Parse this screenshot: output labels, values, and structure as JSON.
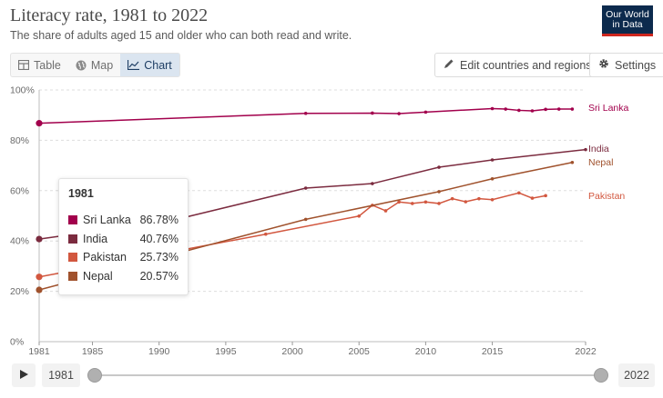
{
  "header": {
    "title": "Literacy rate, 1981 to 2022",
    "subtitle": "The share of adults aged 15 and older who can both read and write.",
    "logo_line1": "Our World",
    "logo_line2": "in Data"
  },
  "toolbar": {
    "tabs": [
      {
        "label": "Table",
        "icon": "table-icon",
        "active": false
      },
      {
        "label": "Map",
        "icon": "globe-icon",
        "active": false
      },
      {
        "label": "Chart",
        "icon": "line-chart-icon",
        "active": true
      }
    ],
    "edit_label": "Edit countries and regions",
    "settings_label": "Settings"
  },
  "tooltip": {
    "year": "1981",
    "rows": [
      {
        "name": "Sri Lanka",
        "value": "86.78%",
        "color": "#a2004c"
      },
      {
        "name": "India",
        "value": "40.76%",
        "color": "#7b2b3f"
      },
      {
        "name": "Pakistan",
        "value": "25.73%",
        "color": "#d2573f"
      },
      {
        "name": "Nepal",
        "value": "20.57%",
        "color": "#a0522d"
      }
    ]
  },
  "timeline": {
    "start_label": "1981",
    "end_label": "2022",
    "start_year": 1981,
    "end_year": 2022
  },
  "chart_data": {
    "type": "line",
    "title": "Literacy rate, 1981 to 2022",
    "subtitle": "The share of adults aged 15 and older who can both read and write.",
    "xlim": [
      1981,
      2022
    ],
    "ylim": [
      0,
      100
    ],
    "x_ticks": [
      1981,
      1985,
      1990,
      1995,
      2000,
      2005,
      2010,
      2015,
      2022
    ],
    "y_ticks": [
      0,
      20,
      40,
      60,
      80,
      100
    ],
    "y_tick_labels": [
      "0%",
      "20%",
      "40%",
      "60%",
      "80%",
      "100%"
    ],
    "grid": "horizontal",
    "series": [
      {
        "name": "Sri Lanka",
        "color": "#a2004c",
        "points": [
          [
            1981,
            86.78
          ],
          [
            2001,
            90.7
          ],
          [
            2006,
            90.8
          ],
          [
            2008,
            90.6
          ],
          [
            2010,
            91.2
          ],
          [
            2015,
            92.6
          ],
          [
            2016,
            92.4
          ],
          [
            2017,
            91.9
          ],
          [
            2018,
            91.7
          ],
          [
            2019,
            92.3
          ],
          [
            2020,
            92.4
          ],
          [
            2021,
            92.4
          ]
        ]
      },
      {
        "name": "India",
        "color": "#7b2b3f",
        "points": [
          [
            1981,
            40.76
          ],
          [
            1991,
            48.2
          ],
          [
            2001,
            61.0
          ],
          [
            2006,
            62.8
          ],
          [
            2011,
            69.3
          ],
          [
            2015,
            72.2
          ],
          [
            2022,
            76.3
          ]
        ]
      },
      {
        "name": "Pakistan",
        "color": "#d2573f",
        "points": [
          [
            1981,
            25.73
          ],
          [
            1998,
            42.7
          ],
          [
            2005,
            49.9
          ],
          [
            2006,
            54.2
          ],
          [
            2007,
            52.0
          ],
          [
            2008,
            55.5
          ],
          [
            2009,
            54.9
          ],
          [
            2010,
            55.5
          ],
          [
            2011,
            54.9
          ],
          [
            2012,
            56.8
          ],
          [
            2013,
            55.6
          ],
          [
            2014,
            56.8
          ],
          [
            2015,
            56.4
          ],
          [
            2017,
            59.1
          ],
          [
            2018,
            57.0
          ],
          [
            2019,
            58.0
          ]
        ]
      },
      {
        "name": "Nepal",
        "color": "#a0522d",
        "points": [
          [
            1981,
            20.57
          ],
          [
            2001,
            48.6
          ],
          [
            2011,
            59.6
          ],
          [
            2015,
            64.7
          ],
          [
            2021,
            71.2
          ]
        ]
      }
    ]
  }
}
